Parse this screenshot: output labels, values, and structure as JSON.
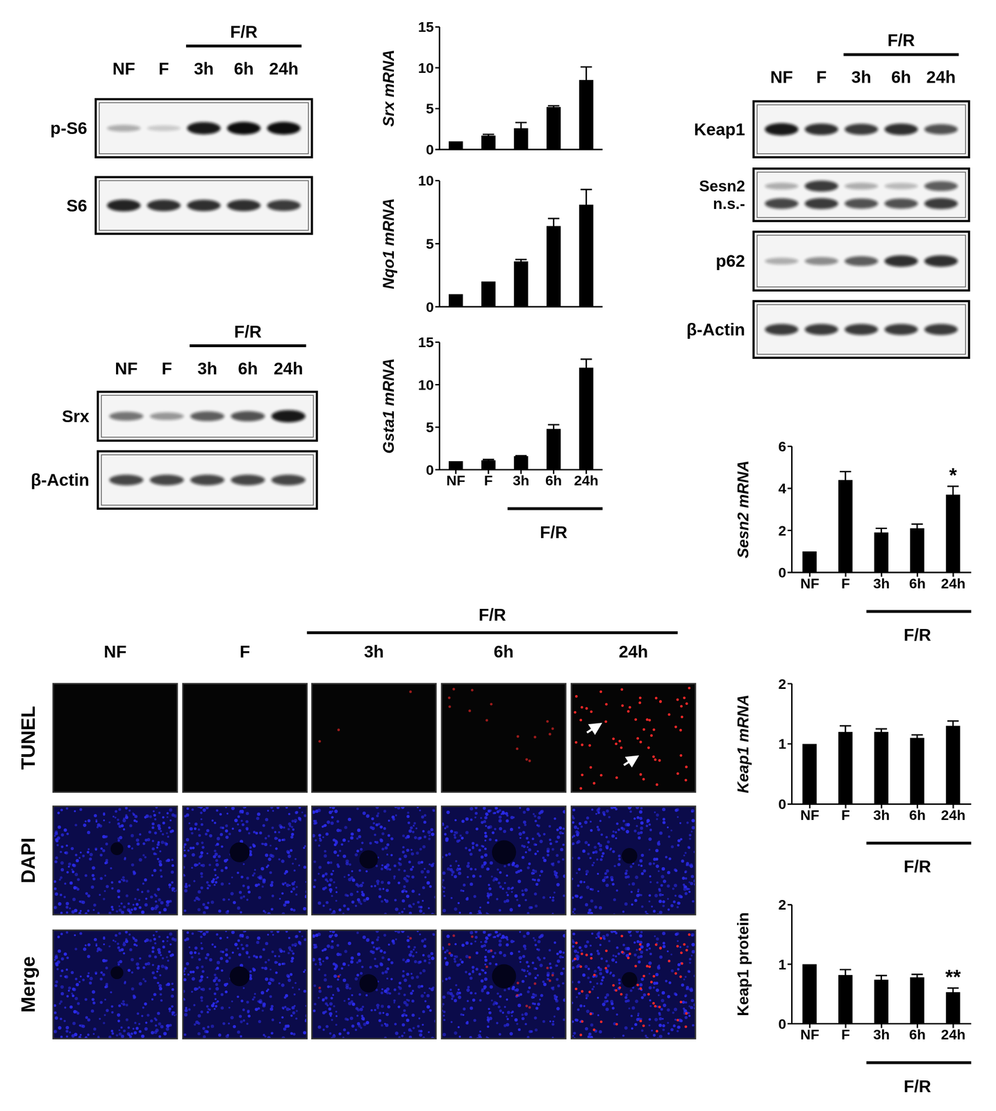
{
  "blots": [
    {
      "lanes": [
        "NF",
        "F",
        "3h",
        "6h",
        "24h"
      ],
      "group_label": "F/R",
      "rows": [
        {
          "bands": [
            {
              "label": "p-S6",
              "intensities": [
                0.3,
                0.18,
                0.95,
                1,
                1
              ]
            }
          ]
        },
        {
          "bands": [
            {
              "label": "S6",
              "intensities": [
                0.9,
                0.85,
                0.85,
                0.85,
                0.8
              ]
            }
          ]
        }
      ]
    },
    {
      "lanes": [
        "NF",
        "F",
        "3h",
        "6h",
        "24h"
      ],
      "group_label": "F/R",
      "rows": [
        {
          "bands": [
            {
              "label": "Srx",
              "intensities": [
                0.55,
                0.4,
                0.65,
                0.7,
                0.95
              ]
            }
          ]
        },
        {
          "bands": [
            {
              "label": "β-Actin",
              "intensities": [
                0.75,
                0.75,
                0.75,
                0.75,
                0.75
              ]
            }
          ]
        }
      ]
    },
    {
      "lanes": [
        "NF",
        "F",
        "3h",
        "6h",
        "24h"
      ],
      "group_label": "F/R",
      "rows": [
        {
          "bands": [
            {
              "label": "Keap1",
              "intensities": [
                0.95,
                0.85,
                0.8,
                0.85,
                0.7
              ]
            }
          ]
        },
        {
          "bands": [
            {
              "label": "Sesn2",
              "intensities": [
                0.3,
                0.8,
                0.3,
                0.25,
                0.65
              ]
            },
            {
              "label": "n.s.-",
              "intensities": [
                0.75,
                0.8,
                0.7,
                0.7,
                0.8
              ]
            }
          ]
        },
        {
          "bands": [
            {
              "label": "p62",
              "intensities": [
                0.3,
                0.45,
                0.65,
                0.85,
                0.85
              ]
            }
          ]
        },
        {
          "bands": [
            {
              "label": "β-Actin",
              "intensities": [
                0.8,
                0.8,
                0.8,
                0.8,
                0.8
              ]
            }
          ]
        }
      ]
    }
  ],
  "microscopy": {
    "columns": [
      "NF",
      "F",
      "3h",
      "6h",
      "24h"
    ],
    "group_label": "F/R",
    "rows": [
      "TUNEL",
      "DAPI",
      "Merge"
    ],
    "tunel_positive_cells": [
      0,
      0,
      3,
      15,
      60
    ]
  },
  "chart_data": [
    {
      "type": "bar",
      "y_label": "Srx mRNA",
      "categories": [
        "NF",
        "F",
        "3h",
        "6h",
        "24h"
      ],
      "values": [
        1,
        1.7,
        2.6,
        5.2,
        8.5
      ],
      "errors": [
        0,
        0.15,
        0.7,
        0.15,
        1.6
      ],
      "ylim": [
        0,
        15
      ],
      "yticks": [
        0,
        5,
        10,
        15
      ],
      "color": "#000000",
      "tick_labels": "y"
    },
    {
      "type": "bar",
      "y_label": "Nqo1 mRNA",
      "categories": [
        "NF",
        "F",
        "3h",
        "6h",
        "24h"
      ],
      "values": [
        1,
        2,
        3.6,
        6.4,
        8.1
      ],
      "errors": [
        0,
        0,
        0.15,
        0.6,
        1.2
      ],
      "ylim": [
        0,
        10
      ],
      "yticks": [
        0,
        5,
        10
      ],
      "color": "#000000",
      "tick_labels": "y"
    },
    {
      "type": "bar",
      "y_label": "Gsta1 mRNA",
      "categories": [
        "NF",
        "F",
        "3h",
        "6h",
        "24h"
      ],
      "group_label": "F/R",
      "values": [
        1,
        1.1,
        1.6,
        4.8,
        12
      ],
      "errors": [
        0,
        0.1,
        0.05,
        0.5,
        1
      ],
      "ylim": [
        0,
        15
      ],
      "yticks": [
        0,
        5,
        10,
        15
      ],
      "color": "#000000"
    },
    {
      "type": "bar",
      "y_label": "Sesn2 mRNA",
      "categories": [
        "NF",
        "F",
        "3h",
        "6h",
        "24h"
      ],
      "group_label": "F/R",
      "values": [
        1,
        4.4,
        1.9,
        2.1,
        3.7
      ],
      "errors": [
        0,
        0.4,
        0.2,
        0.2,
        0.4
      ],
      "significance": [
        null,
        null,
        null,
        null,
        "*"
      ],
      "ylim": [
        0,
        6
      ],
      "yticks": [
        0,
        2,
        4,
        6
      ],
      "color": "#000000"
    },
    {
      "type": "bar",
      "y_label": "Keap1 mRNA",
      "categories": [
        "NF",
        "F",
        "3h",
        "6h",
        "24h"
      ],
      "group_label": "F/R",
      "values": [
        1,
        1.2,
        1.2,
        1.1,
        1.3
      ],
      "errors": [
        0,
        0.1,
        0.05,
        0.05,
        0.08
      ],
      "ylim": [
        0,
        2
      ],
      "yticks": [
        0,
        1,
        2
      ],
      "color": "#000000"
    },
    {
      "type": "bar",
      "y_label": "Keap1 protein",
      "categories": [
        "NF",
        "F",
        "3h",
        "6h",
        "24h"
      ],
      "group_label": "F/R",
      "values": [
        1,
        0.82,
        0.74,
        0.78,
        0.53
      ],
      "errors": [
        0,
        0.09,
        0.07,
        0.05,
        0.07
      ],
      "significance": [
        null,
        null,
        null,
        null,
        "**"
      ],
      "ylim": [
        0,
        2
      ],
      "yticks": [
        0,
        1,
        2
      ],
      "color": "#000000"
    }
  ]
}
